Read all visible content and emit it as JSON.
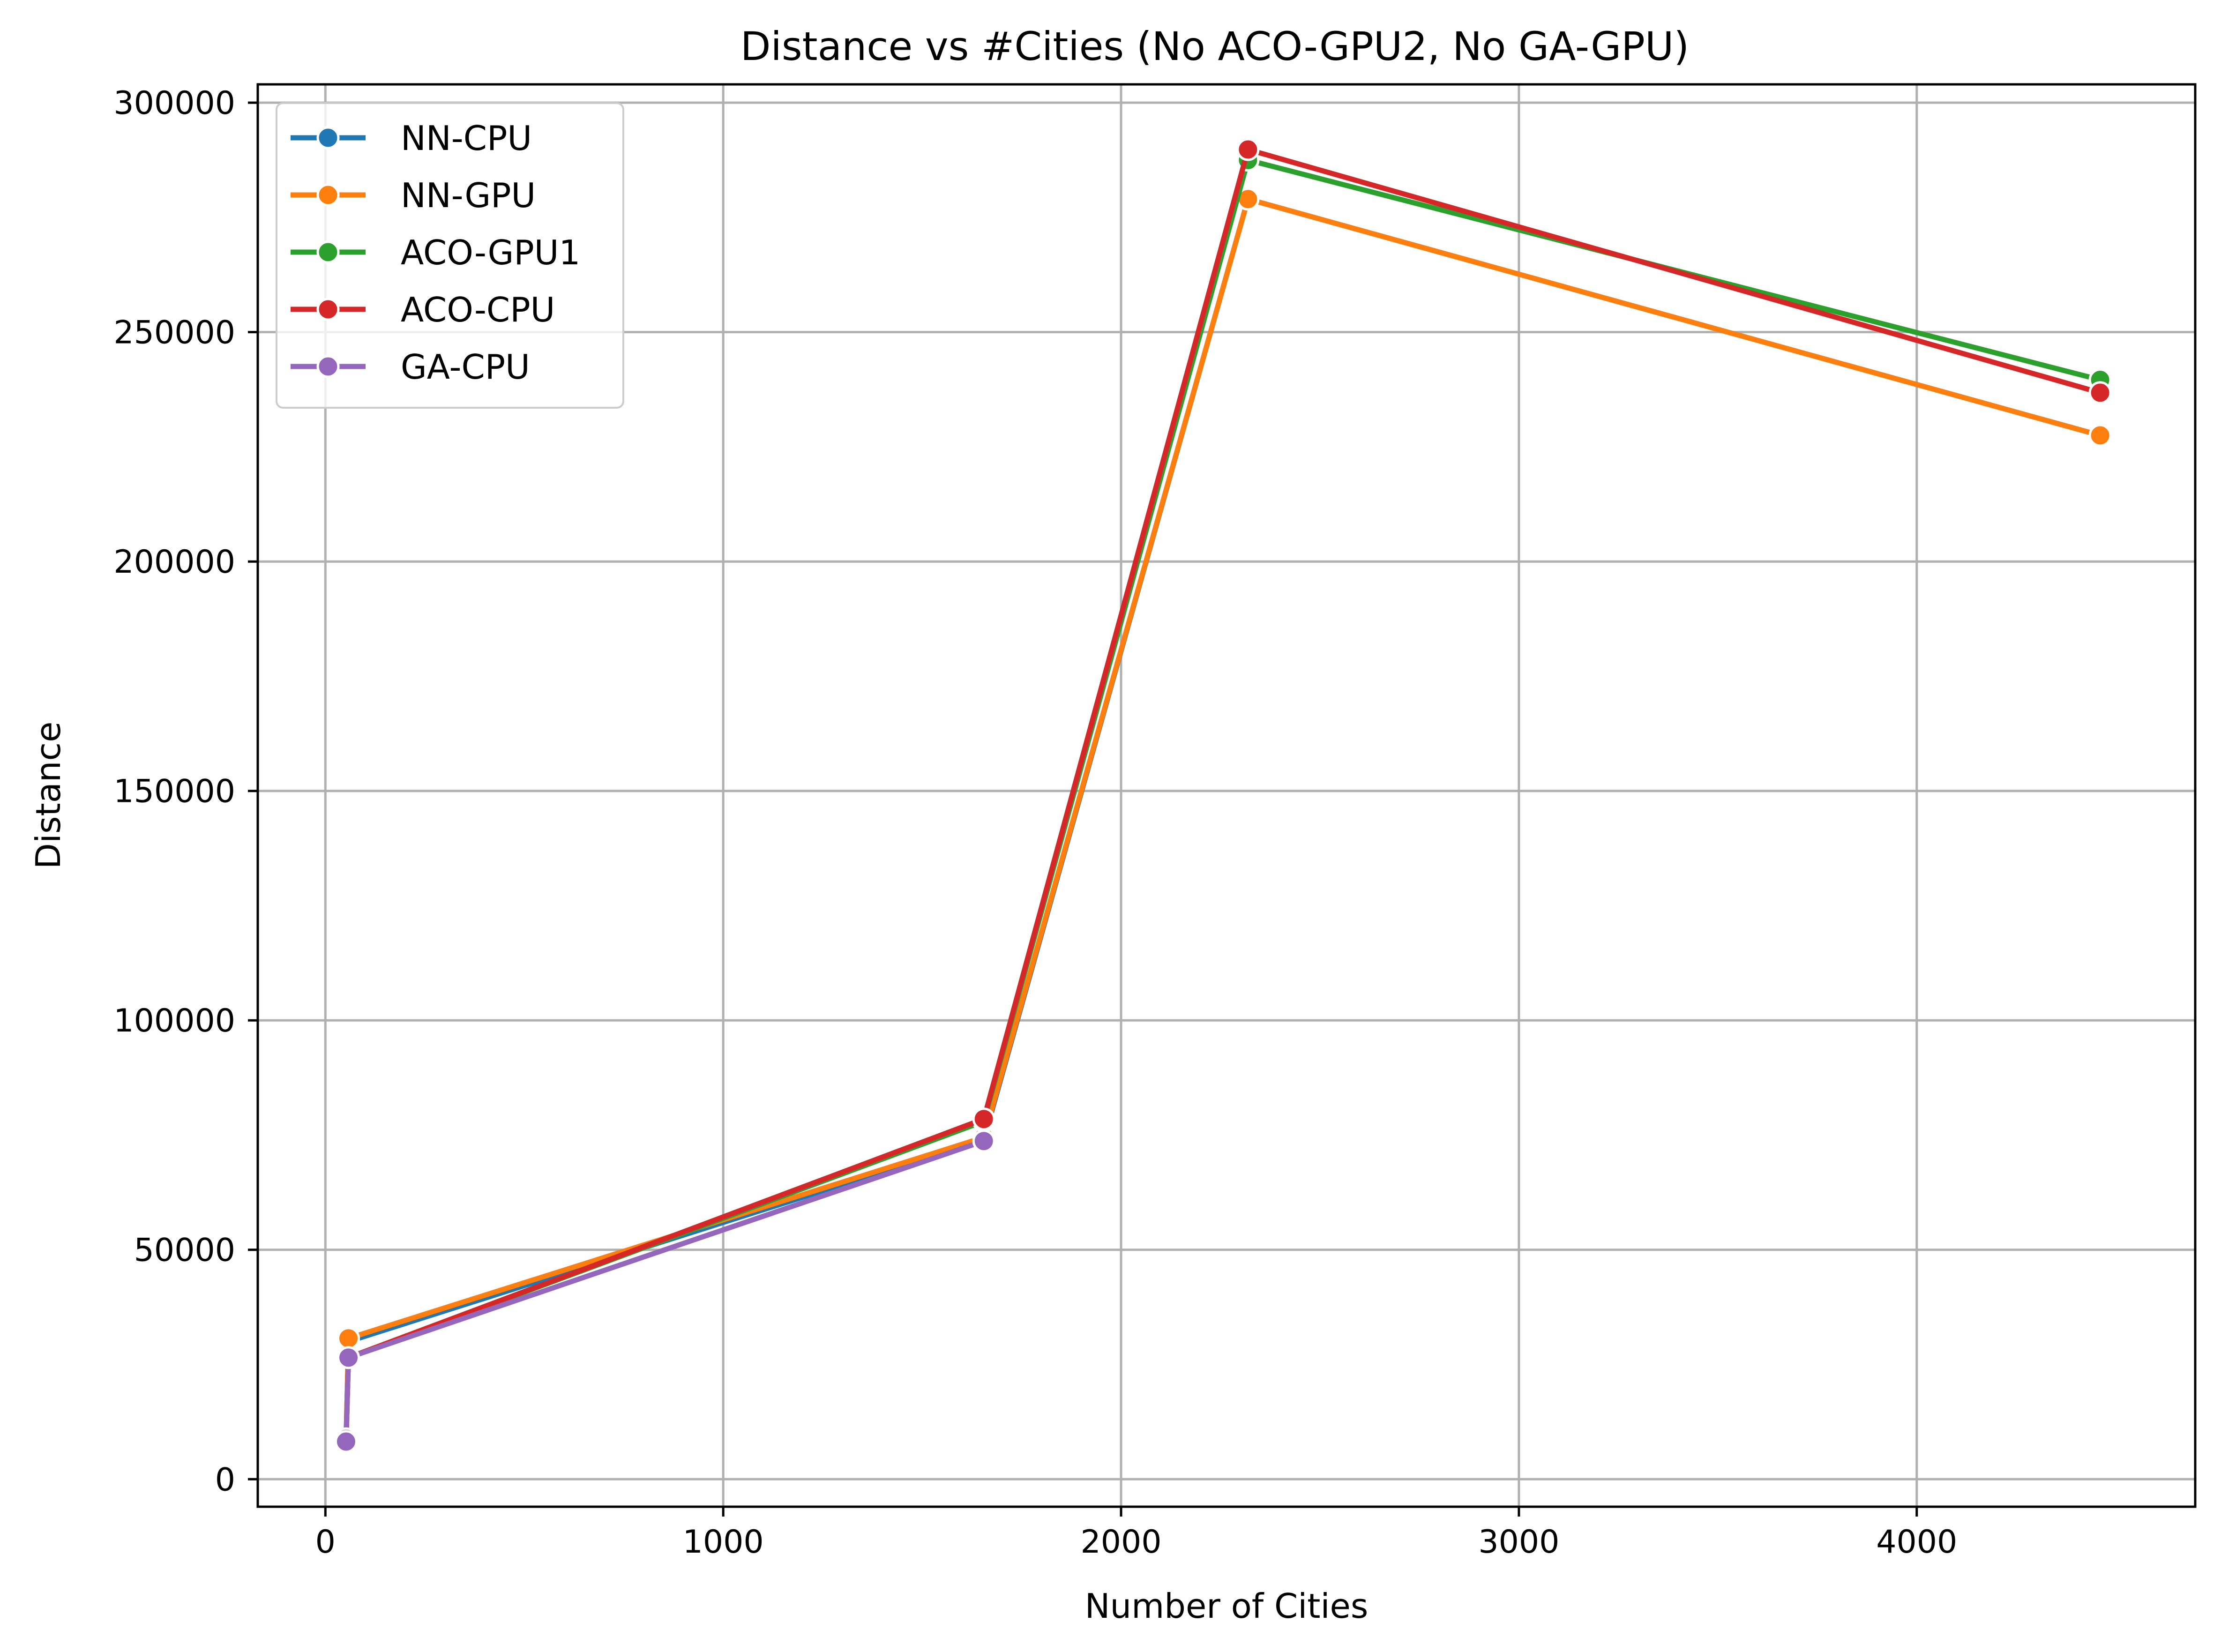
{
  "chart_data": {
    "type": "line",
    "title": "Distance vs #Cities (No ACO-GPU2, No GA-GPU)",
    "xlabel": "Number of Cities",
    "ylabel": "Distance",
    "xlim": [
      -170,
      4700
    ],
    "ylim": [
      -6000,
      304000
    ],
    "xticks": [
      0,
      1000,
      2000,
      3000,
      4000
    ],
    "yticks": [
      0,
      50000,
      100000,
      150000,
      200000,
      250000,
      300000
    ],
    "grid": true,
    "legend_position": "top-left",
    "series": [
      {
        "name": "NN-CPU",
        "color": "#1f77b4",
        "x": [
          52,
          52,
          58,
          1655,
          2319,
          4461
        ],
        "y": [
          8800,
          8200,
          30000,
          74000,
          279000,
          227500
        ]
      },
      {
        "name": "NN-GPU",
        "color": "#ff7f0e",
        "x": [
          52,
          52,
          58,
          1655,
          2319,
          4461
        ],
        "y": [
          8800,
          8200,
          30700,
          74500,
          279000,
          227500
        ]
      },
      {
        "name": "ACO-GPU1",
        "color": "#2ca02c",
        "x": [
          52,
          52,
          58,
          1655,
          2319,
          4461
        ],
        "y": [
          8800,
          8200,
          26500,
          78000,
          287500,
          239600
        ]
      },
      {
        "name": "ACO-CPU",
        "color": "#d62728",
        "x": [
          52,
          52,
          58,
          1655,
          2319,
          4461
        ],
        "y": [
          8800,
          8200,
          26500,
          78500,
          289800,
          236800
        ]
      },
      {
        "name": "GA-CPU",
        "color": "#9467bd",
        "x": [
          52,
          52,
          58,
          1655
        ],
        "y": [
          8800,
          8200,
          26500,
          73700
        ]
      }
    ]
  }
}
